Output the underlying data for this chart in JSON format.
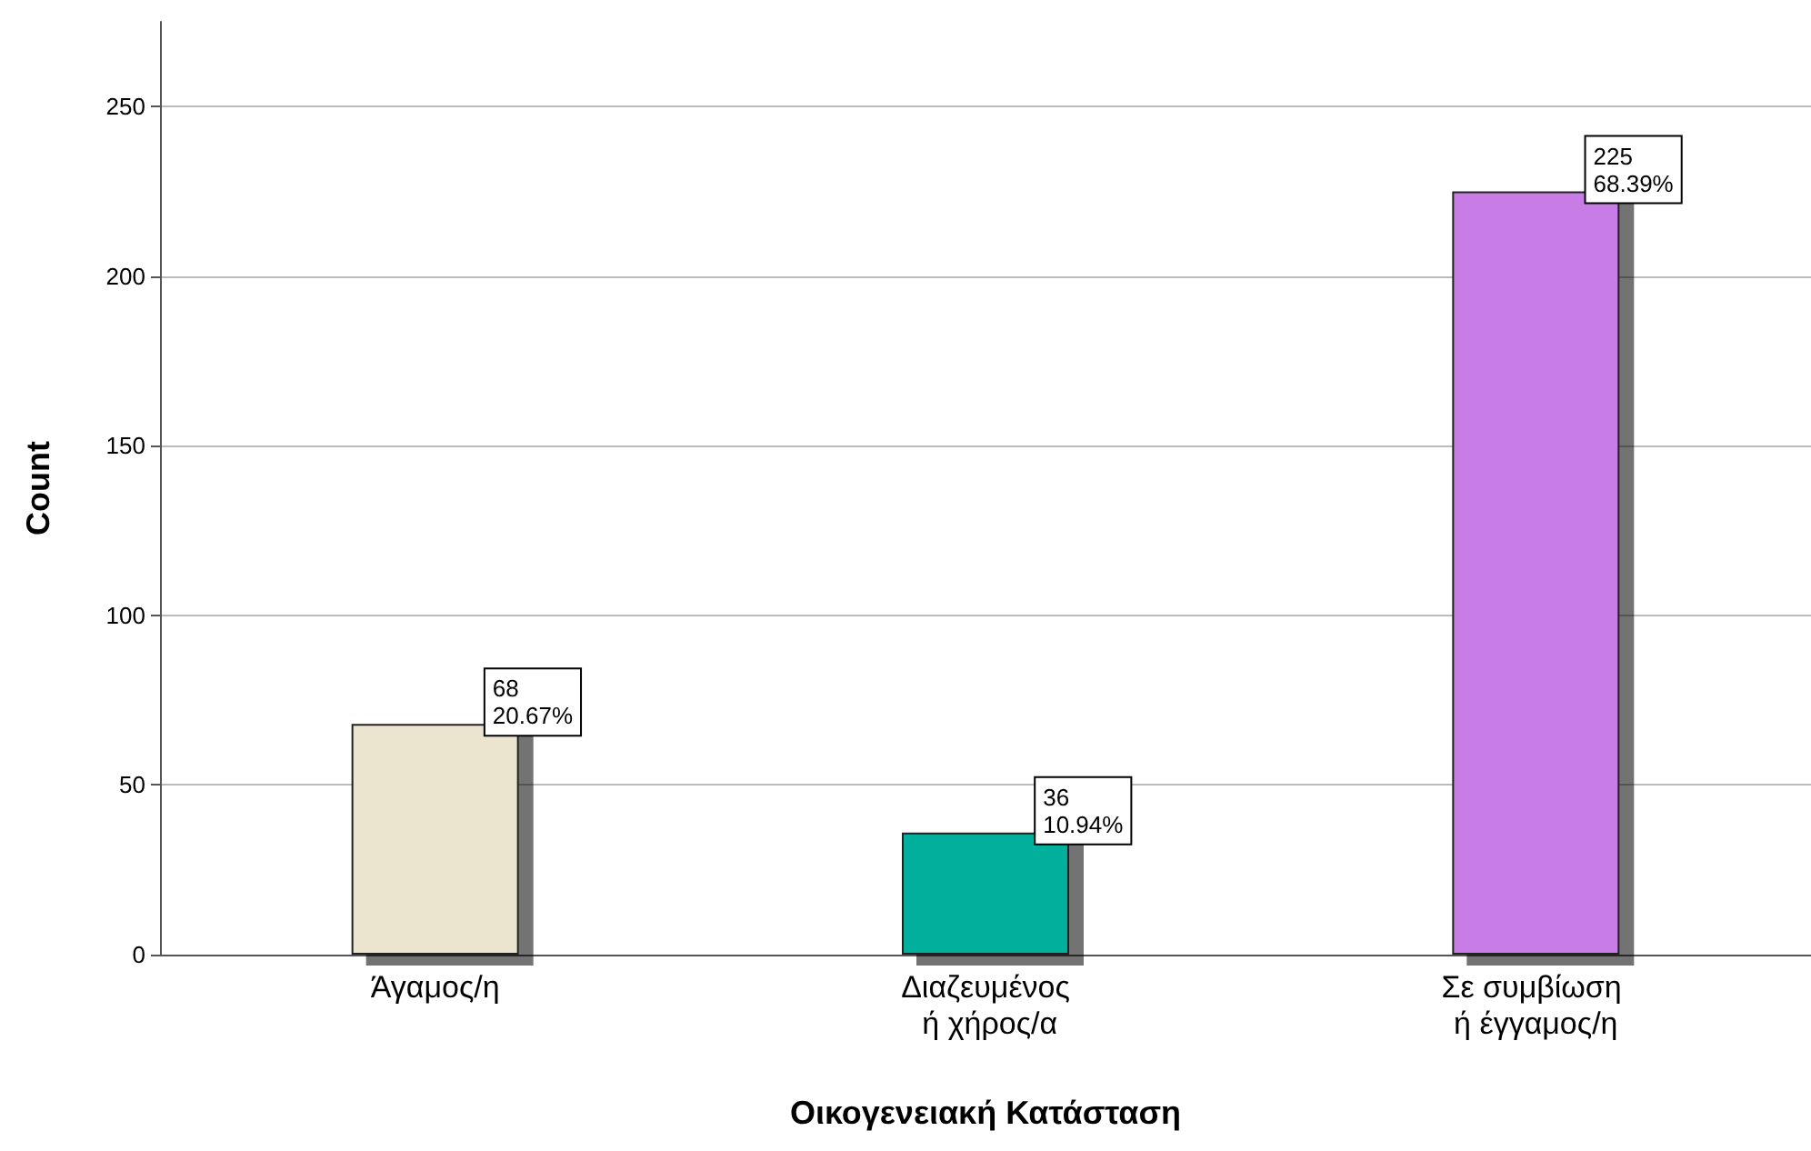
{
  "chart_data": {
    "type": "bar",
    "xlabel": "Οικογενειακή Κατάσταση",
    "ylabel": "Count",
    "categories": [
      "Άγαμος/η",
      "Διαζευμένος ή χήρος/α",
      "Σε συμβίωση ή έγγαμος/η"
    ],
    "values": [
      68,
      36,
      225
    ],
    "colors": [
      "#ebe5d0",
      "#00b09c",
      "#c87de6"
    ],
    "value_labels": [
      "68\n20.67%",
      "36\n10.94%",
      "225\n68.39%"
    ],
    "ylim": [
      0,
      275
    ],
    "yticks": [
      0,
      50,
      100,
      150,
      200,
      250
    ],
    "grid": "y"
  }
}
